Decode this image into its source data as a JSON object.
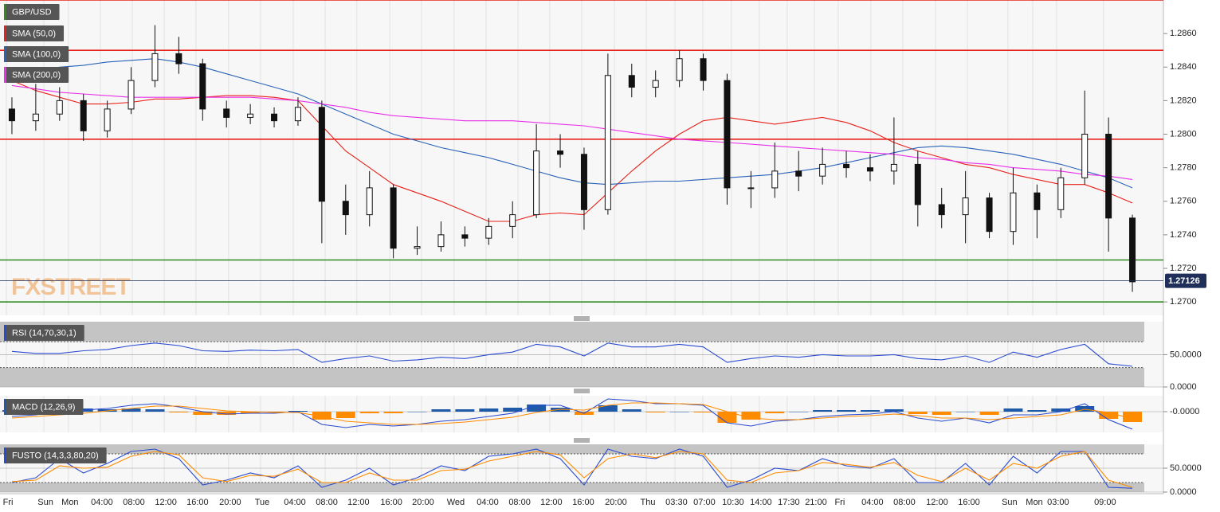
{
  "chart_data": [
    {
      "type": "candlestick",
      "title": "GBP/USD",
      "watermark": "FXSTREET",
      "open": [
        1.2815,
        1.2808,
        1.2812,
        1.282,
        1.2802,
        1.2815,
        1.2832,
        1.2848,
        1.2842,
        1.2815,
        1.281,
        1.2812,
        1.2808,
        1.2816,
        1.276,
        1.2752,
        1.2768,
        1.2732,
        1.2733,
        1.274,
        1.2738,
        1.2745,
        1.2752,
        1.279,
        1.2788,
        1.2755,
        1.2835,
        1.2828,
        1.2832,
        1.2845,
        1.2832,
        1.2768,
        1.2768,
        1.2778,
        1.2775,
        1.2782,
        1.278,
        1.2778,
        1.2782,
        1.2758,
        1.2752,
        1.2762,
        1.2742,
        1.2765,
        1.2755,
        1.2774,
        1.28,
        1.275
      ],
      "high": [
        1.2822,
        1.283,
        1.2828,
        1.2824,
        1.282,
        1.284,
        1.2865,
        1.2858,
        1.2845,
        1.282,
        1.2818,
        1.2816,
        1.2822,
        1.282,
        1.277,
        1.2778,
        1.277,
        1.2745,
        1.2748,
        1.2745,
        1.275,
        1.276,
        1.2806,
        1.28,
        1.2792,
        1.2848,
        1.2842,
        1.2838,
        1.285,
        1.2848,
        1.2836,
        1.2778,
        1.2795,
        1.279,
        1.2792,
        1.279,
        1.2788,
        1.281,
        1.279,
        1.2768,
        1.2778,
        1.2765,
        1.278,
        1.277,
        1.278,
        1.2826,
        1.281,
        1.2752
      ],
      "low": [
        1.28,
        1.2802,
        1.2808,
        1.2796,
        1.2798,
        1.2812,
        1.2828,
        1.2836,
        1.2808,
        1.2804,
        1.2806,
        1.2804,
        1.2805,
        1.2735,
        1.274,
        1.2745,
        1.2726,
        1.2728,
        1.273,
        1.2733,
        1.2734,
        1.2738,
        1.275,
        1.278,
        1.2743,
        1.2752,
        1.2822,
        1.2822,
        1.2828,
        1.2826,
        1.2758,
        1.2756,
        1.2762,
        1.2766,
        1.277,
        1.2774,
        1.2772,
        1.277,
        1.2745,
        1.2744,
        1.2735,
        1.2738,
        1.2734,
        1.2738,
        1.275,
        1.277,
        1.273,
        1.2706
      ],
      "close": [
        1.2808,
        1.2812,
        1.282,
        1.2802,
        1.2815,
        1.2832,
        1.2848,
        1.2842,
        1.2815,
        1.281,
        1.2812,
        1.2808,
        1.2816,
        1.276,
        1.2752,
        1.2768,
        1.2732,
        1.2733,
        1.274,
        1.2738,
        1.2745,
        1.2752,
        1.279,
        1.2788,
        1.2755,
        1.2835,
        1.2828,
        1.2832,
        1.2845,
        1.2832,
        1.2768,
        1.2768,
        1.2778,
        1.2775,
        1.2782,
        1.278,
        1.2778,
        1.2782,
        1.2758,
        1.2752,
        1.2762,
        1.2742,
        1.2765,
        1.2755,
        1.2774,
        1.28,
        1.275,
        1.2712
      ],
      "series": [
        {
          "name": "SMA (50,0)",
          "color": "#e8201a",
          "values": [
            1.2832,
            1.2826,
            1.2822,
            1.2818,
            1.2818,
            1.2819,
            1.2821,
            1.2821,
            1.2822,
            1.2823,
            1.2823,
            1.2822,
            1.282,
            1.2805,
            1.279,
            1.278,
            1.277,
            1.2765,
            1.276,
            1.2754,
            1.2748,
            1.2748,
            1.2752,
            1.2753,
            1.2752,
            1.2765,
            1.2778,
            1.279,
            1.28,
            1.2808,
            1.281,
            1.2808,
            1.2806,
            1.2808,
            1.281,
            1.2807,
            1.2802,
            1.2795,
            1.279,
            1.2786,
            1.2782,
            1.278,
            1.2776,
            1.2773,
            1.277,
            1.277,
            1.2765,
            1.2759
          ]
        },
        {
          "name": "SMA (100,0)",
          "color": "#2a62b8",
          "values": [
            1.2836,
            1.2838,
            1.284,
            1.2841,
            1.2843,
            1.2844,
            1.2845,
            1.2843,
            1.284,
            1.2836,
            1.2832,
            1.2828,
            1.2824,
            1.2818,
            1.2812,
            1.2806,
            1.28,
            1.2796,
            1.2792,
            1.2789,
            1.2786,
            1.2782,
            1.2778,
            1.2774,
            1.2771,
            1.277,
            1.2771,
            1.2772,
            1.2772,
            1.2773,
            1.2774,
            1.2775,
            1.2776,
            1.2778,
            1.278,
            1.2783,
            1.2786,
            1.2789,
            1.2792,
            1.2793,
            1.2792,
            1.279,
            1.2788,
            1.2785,
            1.2782,
            1.2778,
            1.2774,
            1.2768
          ]
        },
        {
          "name": "SMA (200,0)",
          "color": "#e830e8",
          "values": [
            1.2829,
            1.2827,
            1.2825,
            1.2824,
            1.2823,
            1.2822,
            1.2822,
            1.2822,
            1.2822,
            1.2822,
            1.2822,
            1.2821,
            1.282,
            1.2818,
            1.2816,
            1.2813,
            1.2811,
            1.281,
            1.2809,
            1.2808,
            1.2808,
            1.2808,
            1.2807,
            1.2806,
            1.2805,
            1.2803,
            1.2801,
            1.2799,
            1.2797,
            1.2796,
            1.2795,
            1.2794,
            1.2793,
            1.2792,
            1.2791,
            1.279,
            1.2789,
            1.2788,
            1.2786,
            1.2785,
            1.2783,
            1.2782,
            1.278,
            1.2779,
            1.2778,
            1.2776,
            1.2775,
            1.2773
          ]
        }
      ],
      "levels": [
        {
          "value": 1.288,
          "color": "#e8201a"
        },
        {
          "value": 1.285,
          "color": "#e8201a"
        },
        {
          "value": 1.2797,
          "color": "#e8201a"
        },
        {
          "value": 1.2725,
          "color": "#2e8b1e"
        },
        {
          "value": 1.27,
          "color": "#2e8b1e"
        }
      ],
      "last_price": 1.27126,
      "ylim": [
        1.2692,
        1.288
      ],
      "yticks": [
        {
          "value": 1.27,
          "label": "1.2700"
        },
        {
          "value": 1.272,
          "label": "1.2720"
        },
        {
          "value": 1.274,
          "label": "1.2740"
        },
        {
          "value": 1.276,
          "label": "1.2760"
        },
        {
          "value": 1.278,
          "label": "1.2780"
        },
        {
          "value": 1.28,
          "label": "1.2800"
        },
        {
          "value": 1.282,
          "label": "1.2820"
        },
        {
          "value": 1.284,
          "label": "1.2840"
        },
        {
          "value": 1.286,
          "label": "1.2860"
        }
      ],
      "xticks": [
        {
          "value": -0.23,
          "label": "Fri"
        },
        {
          "value": 1.34,
          "label": "Sun"
        },
        {
          "value": 2.37,
          "label": "Mon"
        },
        {
          "value": 3.71,
          "label": "04:00"
        },
        {
          "value": 5.05,
          "label": "08:00"
        },
        {
          "value": 6.39,
          "label": "12:00"
        },
        {
          "value": 7.72,
          "label": "16:00"
        },
        {
          "value": 9.09,
          "label": "20:00"
        },
        {
          "value": 10.43,
          "label": "Tue"
        },
        {
          "value": 11.8,
          "label": "04:00"
        },
        {
          "value": 13.14,
          "label": "08:00"
        },
        {
          "value": 14.47,
          "label": "12:00"
        },
        {
          "value": 15.85,
          "label": "16:00"
        },
        {
          "value": 17.18,
          "label": "20:00"
        },
        {
          "value": 18.55,
          "label": "Wed"
        },
        {
          "value": 19.89,
          "label": "04:00"
        },
        {
          "value": 21.23,
          "label": "08:00"
        },
        {
          "value": 22.56,
          "label": "12:00"
        },
        {
          "value": 23.9,
          "label": "16:00"
        },
        {
          "value": 25.27,
          "label": "20:00"
        },
        {
          "value": 26.61,
          "label": "Thu"
        },
        {
          "value": 27.81,
          "label": "03:30"
        },
        {
          "value": 28.98,
          "label": "07:00"
        },
        {
          "value": 30.18,
          "label": "10:30"
        },
        {
          "value": 31.35,
          "label": "14:00"
        },
        {
          "value": 32.52,
          "label": "17:30"
        },
        {
          "value": 33.66,
          "label": "21:00"
        },
        {
          "value": 34.66,
          "label": "Fri"
        },
        {
          "value": 36.03,
          "label": "04:00"
        },
        {
          "value": 37.37,
          "label": "08:00"
        },
        {
          "value": 38.74,
          "label": "12:00"
        },
        {
          "value": 40.08,
          "label": "16:00"
        },
        {
          "value": 41.78,
          "label": "Sun"
        },
        {
          "value": 42.82,
          "label": "Mon"
        },
        {
          "value": 43.82,
          "label": "03:00"
        },
        {
          "value": 45.79,
          "label": "09:00"
        }
      ]
    },
    {
      "type": "line",
      "title": "RSI (14,70,30,1)",
      "bands": [
        30,
        70
      ],
      "series": [
        {
          "color": "#2a4bd0",
          "values": [
            55,
            52,
            52,
            56,
            58,
            64,
            68,
            64,
            56,
            55,
            57,
            56,
            58,
            38,
            44,
            48,
            40,
            42,
            46,
            44,
            50,
            54,
            66,
            62,
            48,
            68,
            62,
            62,
            66,
            62,
            38,
            44,
            48,
            46,
            50,
            48,
            48,
            50,
            44,
            42,
            48,
            38,
            54,
            46,
            58,
            66,
            36,
            32
          ]
        }
      ],
      "ylim": [
        0,
        101
      ],
      "yticks": [
        {
          "value": 0,
          "label": "0.0000"
        },
        {
          "value": 50,
          "label": "50.0000"
        }
      ]
    },
    {
      "type": "line",
      "title": "MACD (12,26,9)",
      "series": [
        {
          "style": "bar",
          "color": "#1e5aa8",
          "negative_color": "#ff8c00",
          "values": [
            0.0002,
            0.0002,
            0.0004,
            0.0004,
            0.0003,
            0.0004,
            0.0003,
            -0.0001,
            -0.0004,
            -0.0004,
            -0.0002,
            -0.0001,
            0.0001,
            -0.001,
            -0.0008,
            -0.0002,
            -0.0002,
            0,
            0.0003,
            0.0003,
            0.0004,
            0.0005,
            0.0009,
            0.0005,
            -0.0004,
            0.0008,
            0.0003,
            -0.0001,
            0,
            -0.0001,
            -0.0014,
            -0.001,
            -0.0002,
            0,
            0.0002,
            0.0002,
            0.0002,
            0.0003,
            -0.0003,
            -0.0004,
            0,
            -0.0004,
            0.0004,
            0.0002,
            0.0004,
            0.0007,
            -0.0009,
            -0.0013
          ]
        },
        {
          "color": "#2a4bd0",
          "values": [
            -0.0006,
            -0.0004,
            0,
            0.0002,
            0.0004,
            0.0008,
            0.001,
            0.0006,
            0,
            -0.0003,
            -0.0002,
            -0.0002,
            0,
            -0.0016,
            -0.002,
            -0.0016,
            -0.0018,
            -0.0016,
            -0.0012,
            -0.001,
            -0.0006,
            -0.0002,
            0.0008,
            0.0008,
            -0.0002,
            0.0016,
            0.0014,
            0.001,
            0.001,
            0.0008,
            -0.0014,
            -0.0018,
            -0.0012,
            -0.001,
            -0.0006,
            -0.0004,
            -0.0003,
            0,
            -0.0008,
            -0.0012,
            -0.0008,
            -0.0014,
            -0.0004,
            -0.0004,
            0,
            0.001,
            -0.001,
            -0.0022
          ]
        },
        {
          "color": "#ff8c00",
          "values": [
            -0.0008,
            -0.0006,
            -0.0004,
            -0.0002,
            0.0001,
            0.0004,
            0.0007,
            0.0007,
            0.0004,
            0.0001,
            0,
            -0.0001,
            -0.0001,
            -0.0006,
            -0.0012,
            -0.0014,
            -0.0016,
            -0.0016,
            -0.0015,
            -0.0013,
            -0.001,
            -0.0007,
            -0.0001,
            0.0003,
            0.0002,
            0.0008,
            0.0011,
            0.0011,
            0.001,
            0.0009,
            0,
            -0.0008,
            -0.001,
            -0.001,
            -0.0008,
            -0.0006,
            -0.0005,
            -0.0003,
            -0.0005,
            -0.0008,
            -0.0008,
            -0.001,
            -0.0008,
            -0.0006,
            -0.0004,
            0.0003,
            -0.0001,
            -0.0009
          ]
        }
      ],
      "ylim": [
        -0.0026,
        0.002
      ],
      "yticks": [
        {
          "value": 0,
          "label": "-0.0000"
        }
      ]
    },
    {
      "type": "line",
      "title": "FUSTO (14,3,3,80,20)",
      "bands": [
        20,
        80
      ],
      "series": [
        {
          "color": "#2a4bd0",
          "values": [
            20,
            30,
            70,
            40,
            60,
            85,
            90,
            70,
            15,
            25,
            40,
            30,
            55,
            10,
            25,
            50,
            15,
            30,
            55,
            45,
            75,
            80,
            90,
            70,
            15,
            90,
            75,
            70,
            90,
            75,
            10,
            25,
            50,
            45,
            70,
            55,
            50,
            70,
            20,
            20,
            60,
            15,
            75,
            40,
            85,
            85,
            10,
            8
          ]
        },
        {
          "color": "#ff8c00",
          "values": [
            22,
            25,
            55,
            50,
            52,
            75,
            85,
            78,
            30,
            22,
            35,
            33,
            48,
            20,
            20,
            40,
            25,
            25,
            45,
            48,
            65,
            75,
            85,
            78,
            30,
            70,
            80,
            72,
            85,
            80,
            25,
            20,
            40,
            45,
            62,
            58,
            52,
            62,
            35,
            22,
            50,
            25,
            60,
            50,
            75,
            85,
            25,
            10
          ]
        }
      ],
      "ylim": [
        0,
        100
      ],
      "yticks": [
        {
          "value": 0,
          "label": "0.0000"
        },
        {
          "value": 50,
          "label": "50.0000"
        }
      ]
    }
  ]
}
